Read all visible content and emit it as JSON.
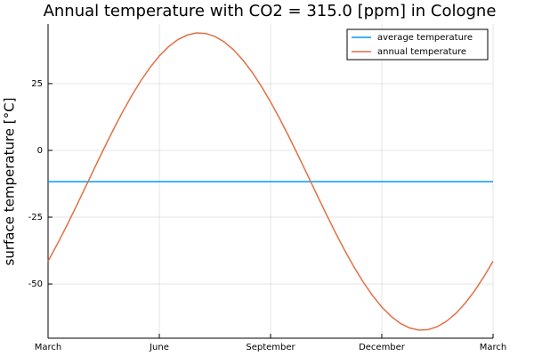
{
  "chart_data": {
    "type": "line",
    "title": "Annual temperature with CO2 = 315.0 [ppm] in Cologne",
    "ylabel": "surface temperature [°C]",
    "x": [
      0,
      0.25,
      0.5,
      0.75,
      1,
      1.25,
      1.5,
      1.75,
      2,
      2.25,
      2.5,
      2.75,
      3,
      3.25,
      3.5,
      3.75,
      4,
      4.25,
      4.5,
      4.75,
      5,
      5.25,
      5.5,
      5.75,
      6,
      6.25,
      6.5,
      6.75,
      7,
      7.25,
      7.5,
      7.75,
      8,
      8.25,
      8.5,
      8.75,
      9,
      9.25,
      9.5,
      9.75,
      10,
      10.25,
      10.5,
      10.75,
      11,
      11.25,
      11.5,
      11.75,
      12
    ],
    "series": [
      {
        "name": "average temperature",
        "color": "#009af9",
        "x": [
          0,
          12
        ],
        "values": [
          -11.7,
          -11.7
        ]
      },
      {
        "name": "annual temperature",
        "color": "#e26f46",
        "values": [
          -41.47,
          -35.08,
          -28.29,
          -21.22,
          -13.98,
          -6.7,
          0.49,
          7.48,
          14.13,
          20.35,
          26.02,
          31.04,
          35.34,
          38.82,
          41.45,
          43.17,
          43.95,
          43.78,
          42.66,
          40.61,
          37.67,
          33.88,
          29.31,
          24.04,
          18.17,
          11.78,
          4.99,
          -2.08,
          -9.32,
          -16.6,
          -23.79,
          -30.78,
          -37.43,
          -43.65,
          -49.32,
          -54.34,
          -58.64,
          -62.12,
          -64.75,
          -66.47,
          -67.25,
          -67.08,
          -65.96,
          -63.91,
          -60.97,
          -57.18,
          -52.61,
          -47.34,
          -41.47
        ]
      }
    ],
    "xlim": [
      0,
      12
    ],
    "xticks": [
      {
        "value": 0,
        "label": "March"
      },
      {
        "value": 3,
        "label": "June"
      },
      {
        "value": 6,
        "label": "September"
      },
      {
        "value": 9,
        "label": "December"
      },
      {
        "value": 12,
        "label": "March"
      }
    ],
    "ylim": [
      -70.3,
      47.3
    ],
    "yticks": [
      -50,
      -25,
      0,
      25
    ],
    "grid": true,
    "legend": "top-right"
  }
}
